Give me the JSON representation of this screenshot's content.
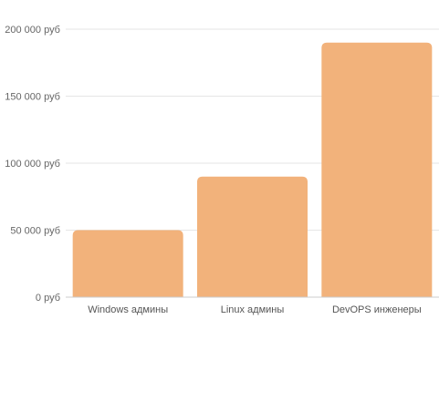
{
  "chart_data": {
    "type": "bar",
    "categories": [
      "Windows админы",
      "Linux админы",
      "DevOPS инженеры"
    ],
    "values": [
      50000,
      90000,
      190000
    ],
    "ylim": [
      0,
      200000
    ],
    "y_ticks": [
      0,
      50000,
      100000,
      150000,
      200000
    ],
    "y_tick_labels": [
      "0 руб",
      "50 000 руб",
      "100 000 руб",
      "150 000 руб",
      "200 000 руб"
    ],
    "bar_color": "#f2b27b",
    "grid": true,
    "legend": "none"
  }
}
